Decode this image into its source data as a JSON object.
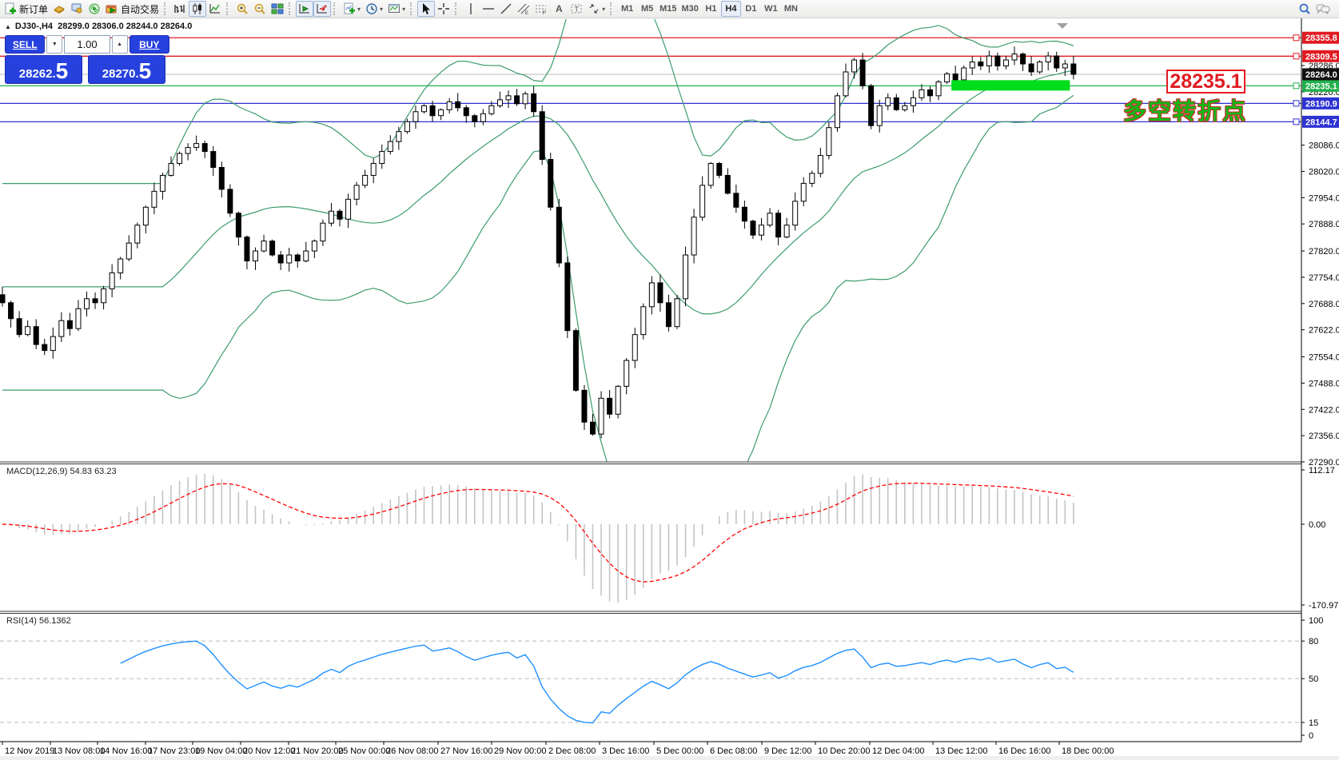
{
  "toolbar": {
    "new_order_label": "新订单",
    "autotrading_label": "自动交易",
    "timeframes": [
      "M1",
      "M5",
      "M15",
      "M30",
      "H1",
      "H4",
      "D1",
      "W1",
      "MN"
    ],
    "active_timeframe": "H4",
    "volume_caret_down": "▼",
    "volume_caret_up": "▲"
  },
  "header": {
    "collapse_arrow": "▲",
    "symbol": "DJ30-,H4",
    "ohlc": "28299.0 28306.0 28244.0 28264.0"
  },
  "trade": {
    "sell_label": "SELL",
    "buy_label": "BUY",
    "volume": "1.00",
    "sell_price": {
      "int": "28262",
      "dot": ".",
      "big": "5"
    },
    "buy_price": {
      "int": "28270",
      "dot": ".",
      "big": "5"
    }
  },
  "panels": {
    "macd": {
      "title": "MACD(12,26,9)",
      "values": "54.83 63.23"
    },
    "rsi": {
      "title": "RSI(14)",
      "value": "56.1362"
    }
  },
  "annotations": {
    "price_label": "28235.1",
    "turning_point": "多空转折点"
  },
  "chart_data": [
    {
      "type": "candlestick",
      "title": "DJ30-,H4",
      "bar_count": 128,
      "ohlc_display": {
        "open": "28299.0",
        "high": "28306.0",
        "low": "28244.0",
        "close": "28264.0"
      },
      "closes": [
        27690,
        27650,
        27610,
        27630,
        27585,
        27570,
        27605,
        27645,
        27625,
        27675,
        27700,
        27690,
        27725,
        27765,
        27800,
        27840,
        27885,
        27930,
        27970,
        28010,
        28040,
        28065,
        28080,
        28090,
        28070,
        28030,
        27975,
        27915,
        27855,
        27795,
        27820,
        27845,
        27810,
        27790,
        27810,
        27795,
        27820,
        27845,
        27890,
        27920,
        27900,
        27950,
        27985,
        28010,
        28040,
        28070,
        28095,
        28120,
        28145,
        28170,
        28185,
        28160,
        28175,
        28195,
        28180,
        28160,
        28145,
        28165,
        28185,
        28200,
        28210,
        28190,
        28215,
        28170,
        28050,
        27930,
        27790,
        27620,
        27470,
        27390,
        27360,
        27450,
        27410,
        27480,
        27545,
        27610,
        27680,
        27740,
        27690,
        27630,
        27700,
        27810,
        27905,
        27985,
        28040,
        28010,
        27965,
        27930,
        27895,
        27860,
        27885,
        27915,
        27855,
        27885,
        27945,
        27990,
        28015,
        28060,
        28130,
        28210,
        28270,
        28300,
        28235,
        28135,
        28185,
        28205,
        28175,
        28185,
        28205,
        28225,
        28210,
        28245,
        28265,
        28250,
        28280,
        28295,
        28285,
        28310,
        28285,
        28300,
        28315,
        28290,
        28270,
        28295,
        28310,
        28280,
        28290,
        28264
      ],
      "y_ticks": [
        28286.0,
        28220.0,
        28086.0,
        28020.0,
        27954.0,
        27888.0,
        27820.0,
        27754.0,
        27688.0,
        27622.0,
        27554.0,
        27488.0,
        27422.0,
        27356.0,
        27290.0
      ],
      "hlines": [
        {
          "price": 28355.8,
          "label": "28355.8",
          "color": "#e11b22"
        },
        {
          "price": 28309.5,
          "label": "28309.5",
          "color": "#e11b22"
        },
        {
          "price": 28235.1,
          "label": "28235.1",
          "color": "#22b14c"
        },
        {
          "price": 28190.9,
          "label": "28190.9",
          "color": "#2d32d2"
        },
        {
          "price": 28144.7,
          "label": "28144.7",
          "color": "#2d32d2"
        }
      ],
      "current_price": {
        "price": 28264.0,
        "label": "28264.0",
        "color": "#111111"
      },
      "plain_tick_levels": [
        28286.0,
        28220.0
      ],
      "bollinger": {
        "period": 20,
        "deviation": 2,
        "color": "#3c9c6c"
      },
      "highlight_bar": {
        "from_bar": 113,
        "to_bar": 126,
        "price": 28235.1,
        "color": "#00dd1c"
      },
      "x_labels": [
        "12 Nov 2019",
        "13 Nov 08:00",
        "14 Nov 16:00",
        "17 Nov 23:00",
        "19 Nov 04:00",
        "20 Nov 12:00",
        "21 Nov 20:00",
        "25 Nov 00:00",
        "26 Nov 08:00",
        "27 Nov 16:00",
        "29 Nov 00:00",
        "2 Dec 08:00",
        "3 Dec 16:00",
        "5 Dec 00:00",
        "6 Dec 08:00",
        "9 Dec 12:00",
        "10 Dec 20:00",
        "12 Dec 04:00",
        "13 Dec 12:00",
        "16 Dec 16:00",
        "18 Dec 00:00"
      ]
    },
    {
      "type": "bar",
      "name": "MACD",
      "params": [
        12,
        26,
        9
      ],
      "current_values": [
        54.83,
        63.23
      ],
      "axis_ticks": [
        "112.17",
        "0.00",
        "-170.97"
      ],
      "histogram_color": "#c4c4c4",
      "signal_color": "#ff0000"
    },
    {
      "type": "line",
      "name": "RSI",
      "params": [
        14
      ],
      "current_value": 56.1362,
      "axis_ticks": [
        "100",
        "80",
        "50",
        "15",
        "0"
      ],
      "level_lines": [
        80,
        50,
        15
      ],
      "line_color": "#1e90ff"
    }
  ]
}
